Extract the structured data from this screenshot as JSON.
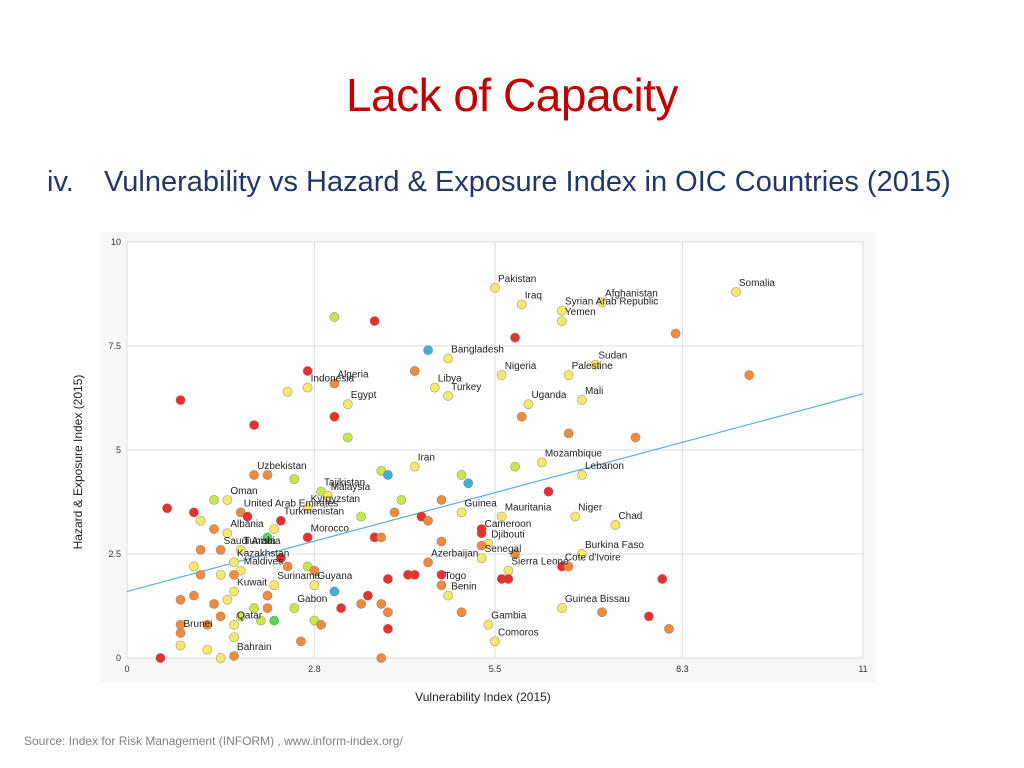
{
  "slide": {
    "title": "Lack of Capacity",
    "subtitle_num": "iv.",
    "subtitle_text": "Vulnerability vs Hazard & Exposure Index in OIC Countries (2015)",
    "source": "Source: Index for Risk Management (INFORM) , www.inform-index.org/"
  },
  "chart_data": {
    "type": "scatter",
    "xlabel": "Vulnerability Index (2015)",
    "ylabel": "Hazard & Exposure Index (2015)",
    "xlim": [
      0,
      11
    ],
    "ylim": [
      0,
      10
    ],
    "xticks": [
      0,
      2.8,
      5.5,
      8.3,
      11
    ],
    "yticks": [
      0,
      2.5,
      5,
      7.5,
      10
    ],
    "grid": true,
    "trendline": {
      "from": [
        0,
        1.6
      ],
      "to": [
        11,
        6.35
      ]
    },
    "colors": {
      "very_high": "#e8312f",
      "high": "#f08a3c",
      "medium": "#f5e96a",
      "low": "#c6e84a",
      "very_low": "#3fb1d6",
      "lowest": "#5ad35a",
      "trendline": "#5aaee0"
    },
    "points": [
      {
        "label": "Somalia",
        "x": 9.1,
        "y": 8.8,
        "c": "medium"
      },
      {
        "label": "Pakistan",
        "x": 5.5,
        "y": 8.9,
        "c": "medium"
      },
      {
        "label": "Iraq",
        "x": 5.9,
        "y": 8.5,
        "c": "medium"
      },
      {
        "label": "Afghanistan",
        "x": 7.1,
        "y": 8.55,
        "c": "medium"
      },
      {
        "label": "Syrian Arab Republic",
        "x": 6.5,
        "y": 8.35,
        "c": "medium"
      },
      {
        "label": "Yemen",
        "x": 6.5,
        "y": 8.1,
        "c": "medium"
      },
      {
        "label": "Bangladesh",
        "x": 4.8,
        "y": 7.2,
        "c": "medium"
      },
      {
        "label": "Sudan",
        "x": 7.0,
        "y": 7.05,
        "c": "medium"
      },
      {
        "label": "Nigeria",
        "x": 5.6,
        "y": 6.8,
        "c": "medium"
      },
      {
        "label": "Palestine",
        "x": 6.6,
        "y": 6.8,
        "c": "medium"
      },
      {
        "label": "Indonesia",
        "x": 2.7,
        "y": 6.5,
        "c": "medium"
      },
      {
        "label": "Libya",
        "x": 4.6,
        "y": 6.5,
        "c": "medium"
      },
      {
        "label": "Algeria",
        "x": 3.1,
        "y": 6.6,
        "c": "high"
      },
      {
        "label": "Turkey",
        "x": 4.8,
        "y": 6.3,
        "c": "medium"
      },
      {
        "label": "Egypt",
        "x": 3.3,
        "y": 6.1,
        "c": "medium"
      },
      {
        "label": "Uganda",
        "x": 6.0,
        "y": 6.1,
        "c": "medium"
      },
      {
        "label": "Mali",
        "x": 6.8,
        "y": 6.2,
        "c": "medium"
      },
      {
        "label": "Iran",
        "x": 4.3,
        "y": 4.6,
        "c": "medium"
      },
      {
        "label": "Mozambique",
        "x": 6.2,
        "y": 4.7,
        "c": "medium"
      },
      {
        "label": "Lebanon",
        "x": 6.8,
        "y": 4.4,
        "c": "medium"
      },
      {
        "label": "Uzbekistan",
        "x": 1.9,
        "y": 4.4,
        "c": "high"
      },
      {
        "label": "Tajikistan",
        "x": 2.9,
        "y": 4.0,
        "c": "low"
      },
      {
        "label": "Malaysia",
        "x": 3.0,
        "y": 3.9,
        "c": "medium"
      },
      {
        "label": "Guinea",
        "x": 5.0,
        "y": 3.5,
        "c": "medium"
      },
      {
        "label": "Mauritania",
        "x": 5.6,
        "y": 3.4,
        "c": "medium"
      },
      {
        "label": "Niger",
        "x": 6.7,
        "y": 3.4,
        "c": "medium"
      },
      {
        "label": "Chad",
        "x": 7.3,
        "y": 3.2,
        "c": "medium"
      },
      {
        "label": "Oman",
        "x": 1.5,
        "y": 3.8,
        "c": "medium"
      },
      {
        "label": "Kyrgyzstan",
        "x": 2.7,
        "y": 3.6,
        "c": "medium"
      },
      {
        "label": "United Arab Emirates",
        "x": 1.7,
        "y": 3.5,
        "c": "high"
      },
      {
        "label": "Turkmenistan",
        "x": 2.3,
        "y": 3.3,
        "c": "very_high"
      },
      {
        "label": "Albania",
        "x": 1.5,
        "y": 3.0,
        "c": "medium"
      },
      {
        "label": "Cameroon",
        "x": 5.3,
        "y": 3.0,
        "c": "very_high"
      },
      {
        "label": "Morocco",
        "x": 2.7,
        "y": 2.9,
        "c": "very_high"
      },
      {
        "label": "Djibouti",
        "x": 5.4,
        "y": 2.75,
        "c": "medium"
      },
      {
        "label": "Burkina Faso",
        "x": 6.8,
        "y": 2.5,
        "c": "medium"
      },
      {
        "label": "Saudi Arabia",
        "x": 1.4,
        "y": 2.6,
        "c": "high"
      },
      {
        "label": "Tunisia",
        "x": 1.7,
        "y": 2.6,
        "c": "medium"
      },
      {
        "label": "Azerbaijan",
        "x": 4.5,
        "y": 2.3,
        "c": "high"
      },
      {
        "label": "Senegal",
        "x": 5.3,
        "y": 2.4,
        "c": "medium"
      },
      {
        "label": "Kazakhstan",
        "x": 1.6,
        "y": 2.3,
        "c": "medium"
      },
      {
        "label": "Cote d'Ivoire",
        "x": 6.5,
        "y": 2.2,
        "c": "very_high"
      },
      {
        "label": "Sierra Leone",
        "x": 5.7,
        "y": 2.1,
        "c": "medium"
      },
      {
        "label": "Maldives",
        "x": 1.7,
        "y": 2.1,
        "c": "medium"
      },
      {
        "label": "Suriname",
        "x": 2.2,
        "y": 1.75,
        "c": "medium"
      },
      {
        "label": "Guyana",
        "x": 2.8,
        "y": 1.75,
        "c": "medium"
      },
      {
        "label": "Kuwait",
        "x": 1.6,
        "y": 1.6,
        "c": "medium"
      },
      {
        "label": "Togo",
        "x": 4.7,
        "y": 1.75,
        "c": "high"
      },
      {
        "label": "Benin",
        "x": 4.8,
        "y": 1.5,
        "c": "medium"
      },
      {
        "label": "Guinea Bissau",
        "x": 6.5,
        "y": 1.2,
        "c": "medium"
      },
      {
        "label": "Gabon",
        "x": 2.5,
        "y": 1.2,
        "c": "low"
      },
      {
        "label": "Gambia",
        "x": 5.4,
        "y": 0.8,
        "c": "medium"
      },
      {
        "label": "Qatar",
        "x": 1.6,
        "y": 0.8,
        "c": "medium"
      },
      {
        "label": "Comoros",
        "x": 5.5,
        "y": 0.4,
        "c": "medium"
      },
      {
        "label": "Brunei",
        "x": 0.8,
        "y": 0.6,
        "c": "high"
      },
      {
        "label": "Bahrain",
        "x": 1.6,
        "y": 0.05,
        "c": "high"
      },
      {
        "label": "",
        "x": 3.1,
        "y": 8.2,
        "c": "low"
      },
      {
        "label": "",
        "x": 3.7,
        "y": 8.1,
        "c": "very_high"
      },
      {
        "label": "",
        "x": 4.5,
        "y": 7.4,
        "c": "very_low"
      },
      {
        "label": "",
        "x": 5.8,
        "y": 7.7,
        "c": "very_high"
      },
      {
        "label": "",
        "x": 8.2,
        "y": 7.8,
        "c": "high"
      },
      {
        "label": "",
        "x": 9.3,
        "y": 6.8,
        "c": "high"
      },
      {
        "label": "",
        "x": 0.8,
        "y": 6.2,
        "c": "very_high"
      },
      {
        "label": "",
        "x": 2.7,
        "y": 6.9,
        "c": "very_high"
      },
      {
        "label": "",
        "x": 4.3,
        "y": 6.9,
        "c": "high"
      },
      {
        "label": "",
        "x": 2.4,
        "y": 6.4,
        "c": "medium"
      },
      {
        "label": "",
        "x": 1.9,
        "y": 5.6,
        "c": "very_high"
      },
      {
        "label": "",
        "x": 3.1,
        "y": 5.8,
        "c": "very_high"
      },
      {
        "label": "",
        "x": 3.3,
        "y": 5.3,
        "c": "low"
      },
      {
        "label": "",
        "x": 5.9,
        "y": 5.8,
        "c": "high"
      },
      {
        "label": "",
        "x": 6.6,
        "y": 5.4,
        "c": "high"
      },
      {
        "label": "",
        "x": 7.6,
        "y": 5.3,
        "c": "high"
      },
      {
        "label": "",
        "x": 3.8,
        "y": 4.5,
        "c": "low"
      },
      {
        "label": "",
        "x": 3.9,
        "y": 4.4,
        "c": "very_low"
      },
      {
        "label": "",
        "x": 2.1,
        "y": 4.4,
        "c": "high"
      },
      {
        "label": "",
        "x": 2.5,
        "y": 4.3,
        "c": "low"
      },
      {
        "label": "",
        "x": 5.0,
        "y": 4.4,
        "c": "low"
      },
      {
        "label": "",
        "x": 5.1,
        "y": 4.2,
        "c": "very_low"
      },
      {
        "label": "",
        "x": 5.8,
        "y": 4.6,
        "c": "low"
      },
      {
        "label": "",
        "x": 6.3,
        "y": 4.0,
        "c": "very_high"
      },
      {
        "label": "",
        "x": 0.6,
        "y": 3.6,
        "c": "very_high"
      },
      {
        "label": "",
        "x": 1.0,
        "y": 3.5,
        "c": "very_high"
      },
      {
        "label": "",
        "x": 1.3,
        "y": 3.8,
        "c": "low"
      },
      {
        "label": "",
        "x": 1.1,
        "y": 3.3,
        "c": "medium"
      },
      {
        "label": "",
        "x": 1.8,
        "y": 3.4,
        "c": "very_high"
      },
      {
        "label": "",
        "x": 3.5,
        "y": 3.4,
        "c": "low"
      },
      {
        "label": "",
        "x": 4.1,
        "y": 3.8,
        "c": "low"
      },
      {
        "label": "",
        "x": 4.7,
        "y": 3.8,
        "c": "high"
      },
      {
        "label": "",
        "x": 4.0,
        "y": 3.5,
        "c": "high"
      },
      {
        "label": "",
        "x": 4.4,
        "y": 3.4,
        "c": "very_high"
      },
      {
        "label": "",
        "x": 4.5,
        "y": 3.3,
        "c": "high"
      },
      {
        "label": "",
        "x": 1.3,
        "y": 3.1,
        "c": "high"
      },
      {
        "label": "",
        "x": 2.2,
        "y": 3.1,
        "c": "medium"
      },
      {
        "label": "",
        "x": 2.1,
        "y": 2.9,
        "c": "lowest"
      },
      {
        "label": "",
        "x": 3.7,
        "y": 2.9,
        "c": "very_high"
      },
      {
        "label": "",
        "x": 3.8,
        "y": 2.9,
        "c": "high"
      },
      {
        "label": "",
        "x": 4.7,
        "y": 2.8,
        "c": "high"
      },
      {
        "label": "",
        "x": 5.3,
        "y": 3.1,
        "c": "very_high"
      },
      {
        "label": "",
        "x": 5.3,
        "y": 2.7,
        "c": "high"
      },
      {
        "label": "",
        "x": 1.1,
        "y": 2.6,
        "c": "high"
      },
      {
        "label": "",
        "x": 2.3,
        "y": 2.4,
        "c": "very_high"
      },
      {
        "label": "",
        "x": 1.0,
        "y": 2.2,
        "c": "medium"
      },
      {
        "label": "",
        "x": 1.1,
        "y": 2.0,
        "c": "high"
      },
      {
        "label": "",
        "x": 1.4,
        "y": 2.0,
        "c": "medium"
      },
      {
        "label": "",
        "x": 1.6,
        "y": 2.0,
        "c": "high"
      },
      {
        "label": "",
        "x": 2.4,
        "y": 2.2,
        "c": "high"
      },
      {
        "label": "",
        "x": 2.7,
        "y": 2.2,
        "c": "low"
      },
      {
        "label": "",
        "x": 2.8,
        "y": 2.1,
        "c": "high"
      },
      {
        "label": "",
        "x": 3.9,
        "y": 1.9,
        "c": "very_high"
      },
      {
        "label": "",
        "x": 4.2,
        "y": 2.0,
        "c": "very_high"
      },
      {
        "label": "",
        "x": 4.3,
        "y": 2.0,
        "c": "very_high"
      },
      {
        "label": "",
        "x": 4.7,
        "y": 2.0,
        "c": "very_high"
      },
      {
        "label": "",
        "x": 5.6,
        "y": 1.9,
        "c": "very_high"
      },
      {
        "label": "",
        "x": 5.7,
        "y": 1.9,
        "c": "very_high"
      },
      {
        "label": "",
        "x": 5.8,
        "y": 2.5,
        "c": "high"
      },
      {
        "label": "",
        "x": 6.6,
        "y": 2.2,
        "c": "high"
      },
      {
        "label": "",
        "x": 8.0,
        "y": 1.9,
        "c": "very_high"
      },
      {
        "label": "",
        "x": 0.8,
        "y": 1.4,
        "c": "high"
      },
      {
        "label": "",
        "x": 1.0,
        "y": 1.5,
        "c": "high"
      },
      {
        "label": "",
        "x": 1.3,
        "y": 1.3,
        "c": "high"
      },
      {
        "label": "",
        "x": 1.5,
        "y": 1.4,
        "c": "medium"
      },
      {
        "label": "",
        "x": 1.9,
        "y": 1.2,
        "c": "low"
      },
      {
        "label": "",
        "x": 2.1,
        "y": 1.2,
        "c": "high"
      },
      {
        "label": "",
        "x": 2.1,
        "y": 1.5,
        "c": "high"
      },
      {
        "label": "",
        "x": 3.1,
        "y": 1.6,
        "c": "very_low"
      },
      {
        "label": "",
        "x": 3.2,
        "y": 1.2,
        "c": "very_high"
      },
      {
        "label": "",
        "x": 3.5,
        "y": 1.3,
        "c": "high"
      },
      {
        "label": "",
        "x": 3.6,
        "y": 1.5,
        "c": "very_high"
      },
      {
        "label": "",
        "x": 3.8,
        "y": 1.3,
        "c": "high"
      },
      {
        "label": "",
        "x": 3.9,
        "y": 1.1,
        "c": "high"
      },
      {
        "label": "",
        "x": 5.0,
        "y": 1.1,
        "c": "high"
      },
      {
        "label": "",
        "x": 7.1,
        "y": 1.1,
        "c": "high"
      },
      {
        "label": "",
        "x": 7.8,
        "y": 1.0,
        "c": "very_high"
      },
      {
        "label": "",
        "x": 1.4,
        "y": 1.0,
        "c": "high"
      },
      {
        "label": "",
        "x": 1.7,
        "y": 1.0,
        "c": "low"
      },
      {
        "label": "",
        "x": 2.0,
        "y": 0.9,
        "c": "low"
      },
      {
        "label": "",
        "x": 2.2,
        "y": 0.9,
        "c": "lowest"
      },
      {
        "label": "",
        "x": 2.8,
        "y": 0.9,
        "c": "low"
      },
      {
        "label": "",
        "x": 2.9,
        "y": 0.8,
        "c": "high"
      },
      {
        "label": "",
        "x": 3.9,
        "y": 0.7,
        "c": "very_high"
      },
      {
        "label": "",
        "x": 0.8,
        "y": 0.8,
        "c": "high"
      },
      {
        "label": "",
        "x": 1.2,
        "y": 0.8,
        "c": "high"
      },
      {
        "label": "",
        "x": 0.8,
        "y": 0.3,
        "c": "medium"
      },
      {
        "label": "",
        "x": 1.2,
        "y": 0.2,
        "c": "medium"
      },
      {
        "label": "",
        "x": 1.6,
        "y": 0.5,
        "c": "medium"
      },
      {
        "label": "",
        "x": 2.6,
        "y": 0.4,
        "c": "high"
      },
      {
        "label": "",
        "x": 1.4,
        "y": 0.0,
        "c": "medium"
      },
      {
        "label": "",
        "x": 0.5,
        "y": 0.0,
        "c": "very_high"
      },
      {
        "label": "",
        "x": 3.8,
        "y": 0.0,
        "c": "high"
      },
      {
        "label": "",
        "x": 8.1,
        "y": 0.7,
        "c": "high"
      }
    ]
  }
}
